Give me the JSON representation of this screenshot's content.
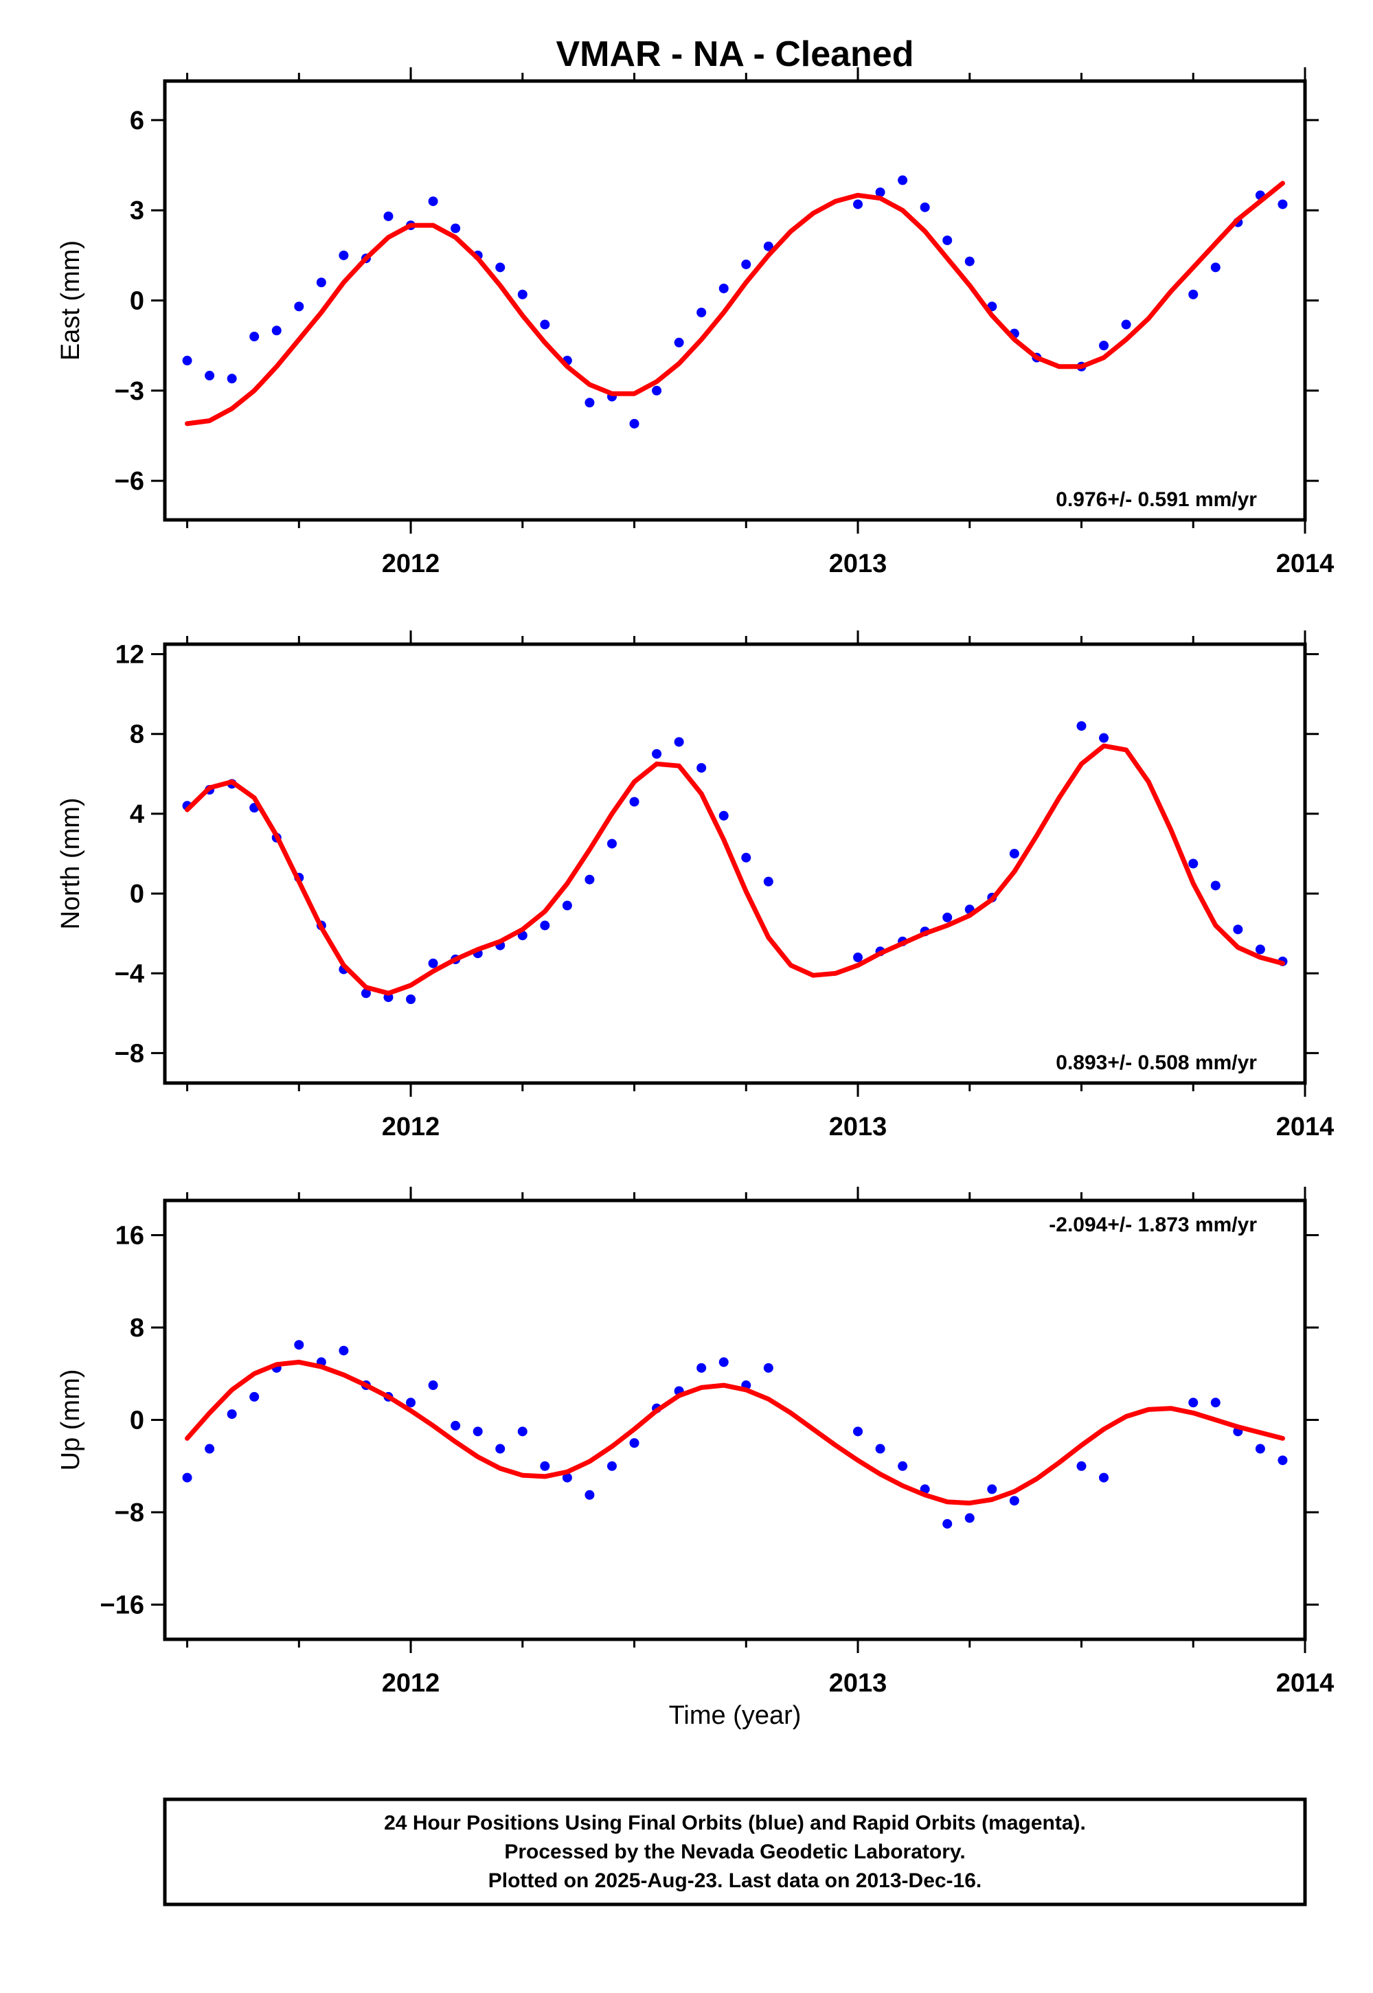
{
  "title": "VMAR  - NA - Cleaned",
  "x_axis_label": "Time (year)",
  "footer": {
    "line1": "24 Hour Positions Using Final Orbits (blue) and Rapid Orbits (magenta).",
    "line2": "Processed by the Nevada Geodetic Laboratory.",
    "line3": "Plotted on 2025-Aug-23. Last data on 2013-Dec-16."
  },
  "colors": {
    "observations": "#0000ff",
    "model": "#ff0000",
    "frame": "#000000"
  },
  "chart_data": [
    {
      "type": "scatter",
      "ylabel": "East (mm)",
      "rate_label": "0.976+/- 0.591 mm/yr",
      "rate_position": "bottom-right",
      "xlim": [
        2011.45,
        2014.0
      ],
      "ylim": [
        -7.3,
        7.3
      ],
      "yticks": [
        -6,
        -3,
        0,
        3,
        6
      ],
      "xticks": [
        2012,
        2013,
        2014
      ],
      "grid": false,
      "series": [
        {
          "kind": "points",
          "x": [
            2011.5,
            2011.55,
            2011.6,
            2011.65,
            2011.7,
            2011.75,
            2011.8,
            2011.85,
            2011.9,
            2011.95,
            2012.0,
            2012.05,
            2012.1,
            2012.15,
            2012.2,
            2012.25,
            2012.3,
            2012.35,
            2012.4,
            2012.45,
            2012.5,
            2012.55,
            2012.6,
            2012.65,
            2012.7,
            2012.75,
            2012.8,
            2013.0,
            2013.05,
            2013.1,
            2013.15,
            2013.2,
            2013.25,
            2013.3,
            2013.35,
            2013.4,
            2013.5,
            2013.55,
            2013.6,
            2013.75,
            2013.8,
            2013.85,
            2013.9,
            2013.95
          ],
          "y": [
            -2.0,
            -2.5,
            -2.6,
            -1.2,
            -1.0,
            -0.2,
            0.6,
            1.5,
            1.4,
            2.8,
            2.5,
            3.3,
            2.4,
            1.5,
            1.1,
            0.2,
            -0.8,
            -2.0,
            -3.4,
            -3.2,
            -4.1,
            -3.0,
            -1.4,
            -0.4,
            0.4,
            1.2,
            1.8,
            3.2,
            3.6,
            4.0,
            3.1,
            2.0,
            1.3,
            -0.2,
            -1.1,
            -1.9,
            -2.2,
            -1.5,
            -0.8,
            0.2,
            1.1,
            2.6,
            3.5,
            3.2
          ]
        },
        {
          "kind": "model",
          "x": [
            2011.5,
            2011.55,
            2011.6,
            2011.65,
            2011.7,
            2011.75,
            2011.8,
            2011.85,
            2011.9,
            2011.95,
            2012.0,
            2012.05,
            2012.1,
            2012.15,
            2012.2,
            2012.25,
            2012.3,
            2012.35,
            2012.4,
            2012.45,
            2012.5,
            2012.55,
            2012.6,
            2012.65,
            2012.7,
            2012.75,
            2012.8,
            2012.85,
            2012.9,
            2012.95,
            2013.0,
            2013.05,
            2013.1,
            2013.15,
            2013.2,
            2013.25,
            2013.3,
            2013.35,
            2013.4,
            2013.45,
            2013.5,
            2013.55,
            2013.6,
            2013.65,
            2013.7,
            2013.75,
            2013.8,
            2013.85,
            2013.9,
            2013.95
          ],
          "y": [
            -4.1,
            -4.0,
            -3.6,
            -3.0,
            -2.2,
            -1.3,
            -0.4,
            0.6,
            1.4,
            2.1,
            2.5,
            2.5,
            2.1,
            1.4,
            0.5,
            -0.5,
            -1.4,
            -2.2,
            -2.8,
            -3.1,
            -3.1,
            -2.7,
            -2.1,
            -1.3,
            -0.4,
            0.6,
            1.5,
            2.3,
            2.9,
            3.3,
            3.5,
            3.4,
            3.0,
            2.3,
            1.4,
            0.5,
            -0.5,
            -1.3,
            -1.9,
            -2.2,
            -2.2,
            -1.9,
            -1.3,
            -0.6,
            0.3,
            1.1,
            1.9,
            2.7,
            3.3,
            3.9
          ]
        }
      ]
    },
    {
      "type": "scatter",
      "ylabel": "North (mm)",
      "rate_label": "0.893+/- 0.508 mm/yr",
      "rate_position": "bottom-right",
      "xlim": [
        2011.45,
        2014.0
      ],
      "ylim": [
        -9.5,
        12.5
      ],
      "yticks": [
        -8,
        -4,
        0,
        4,
        8,
        12
      ],
      "xticks": [
        2012,
        2013,
        2014
      ],
      "grid": false,
      "series": [
        {
          "kind": "points",
          "x": [
            2011.5,
            2011.55,
            2011.6,
            2011.65,
            2011.7,
            2011.75,
            2011.8,
            2011.85,
            2011.9,
            2011.95,
            2012.0,
            2012.05,
            2012.1,
            2012.15,
            2012.2,
            2012.25,
            2012.3,
            2012.35,
            2012.4,
            2012.45,
            2012.5,
            2012.55,
            2012.6,
            2012.65,
            2012.7,
            2012.75,
            2012.8,
            2013.0,
            2013.05,
            2013.1,
            2013.15,
            2013.2,
            2013.25,
            2013.3,
            2013.35,
            2013.5,
            2013.55,
            2013.75,
            2013.8,
            2013.85,
            2013.9,
            2013.95
          ],
          "y": [
            4.4,
            5.2,
            5.5,
            4.3,
            2.8,
            0.8,
            -1.6,
            -3.8,
            -5.0,
            -5.2,
            -5.3,
            -3.5,
            -3.3,
            -3.0,
            -2.6,
            -2.1,
            -1.6,
            -0.6,
            0.7,
            2.5,
            4.6,
            7.0,
            7.6,
            6.3,
            3.9,
            1.8,
            0.6,
            -3.2,
            -2.9,
            -2.4,
            -1.9,
            -1.2,
            -0.8,
            -0.2,
            2.0,
            8.4,
            7.8,
            1.5,
            0.4,
            -1.8,
            -2.8,
            -3.4
          ]
        },
        {
          "kind": "model",
          "x": [
            2011.5,
            2011.55,
            2011.6,
            2011.65,
            2011.7,
            2011.75,
            2011.8,
            2011.85,
            2011.9,
            2011.95,
            2012.0,
            2012.05,
            2012.1,
            2012.15,
            2012.2,
            2012.25,
            2012.3,
            2012.35,
            2012.4,
            2012.45,
            2012.5,
            2012.55,
            2012.6,
            2012.65,
            2012.7,
            2012.75,
            2012.8,
            2012.85,
            2012.9,
            2012.95,
            2013.0,
            2013.05,
            2013.1,
            2013.15,
            2013.2,
            2013.25,
            2013.3,
            2013.35,
            2013.4,
            2013.45,
            2013.5,
            2013.55,
            2013.6,
            2013.65,
            2013.7,
            2013.75,
            2013.8,
            2013.85,
            2013.9,
            2013.95
          ],
          "y": [
            4.2,
            5.3,
            5.6,
            4.8,
            2.9,
            0.6,
            -1.7,
            -3.6,
            -4.7,
            -5.0,
            -4.6,
            -3.9,
            -3.3,
            -2.8,
            -2.4,
            -1.8,
            -0.9,
            0.5,
            2.2,
            4.0,
            5.6,
            6.5,
            6.4,
            5.0,
            2.7,
            0.1,
            -2.2,
            -3.6,
            -4.1,
            -4.0,
            -3.6,
            -3.0,
            -2.5,
            -2.0,
            -1.6,
            -1.1,
            -0.3,
            1.1,
            2.9,
            4.8,
            6.5,
            7.4,
            7.2,
            5.6,
            3.2,
            0.5,
            -1.6,
            -2.7,
            -3.2,
            -3.5
          ]
        }
      ]
    },
    {
      "type": "scatter",
      "ylabel": "Up (mm)",
      "rate_label": "-2.094+/- 1.873 mm/yr",
      "rate_position": "top-right",
      "xlim": [
        2011.45,
        2014.0
      ],
      "ylim": [
        -19,
        19
      ],
      "yticks": [
        -16,
        -8,
        0,
        8,
        16
      ],
      "xticks": [
        2012,
        2013,
        2014
      ],
      "grid": false,
      "series": [
        {
          "kind": "points",
          "x": [
            2011.5,
            2011.55,
            2011.6,
            2011.65,
            2011.7,
            2011.75,
            2011.8,
            2011.85,
            2011.9,
            2011.95,
            2012.0,
            2012.05,
            2012.1,
            2012.15,
            2012.2,
            2012.25,
            2012.3,
            2012.35,
            2012.4,
            2012.45,
            2012.5,
            2012.55,
            2012.6,
            2012.65,
            2012.7,
            2012.75,
            2012.8,
            2013.0,
            2013.05,
            2013.1,
            2013.15,
            2013.2,
            2013.25,
            2013.3,
            2013.35,
            2013.5,
            2013.55,
            2013.75,
            2013.8,
            2013.85,
            2013.9,
            2013.95
          ],
          "y": [
            -5.0,
            -2.5,
            0.5,
            2.0,
            4.5,
            6.5,
            5.0,
            6.0,
            3.0,
            2.0,
            1.5,
            3.0,
            -0.5,
            -1.0,
            -2.5,
            -1.0,
            -4.0,
            -5.0,
            -6.5,
            -4.0,
            -2.0,
            1.0,
            2.5,
            4.5,
            5.0,
            3.0,
            4.5,
            -1.0,
            -2.5,
            -4.0,
            -6.0,
            -9.0,
            -8.5,
            -6.0,
            -7.0,
            -4.0,
            -5.0,
            1.5,
            1.5,
            -1.0,
            -2.5,
            -3.5
          ]
        },
        {
          "kind": "model",
          "x": [
            2011.5,
            2011.55,
            2011.6,
            2011.65,
            2011.7,
            2011.75,
            2011.8,
            2011.85,
            2011.9,
            2011.95,
            2012.0,
            2012.05,
            2012.1,
            2012.15,
            2012.2,
            2012.25,
            2012.3,
            2012.35,
            2012.4,
            2012.45,
            2012.5,
            2012.55,
            2012.6,
            2012.65,
            2012.7,
            2012.75,
            2012.8,
            2012.85,
            2012.9,
            2012.95,
            2013.0,
            2013.05,
            2013.1,
            2013.15,
            2013.2,
            2013.25,
            2013.3,
            2013.35,
            2013.4,
            2013.45,
            2013.5,
            2013.55,
            2013.6,
            2013.65,
            2013.7,
            2013.75,
            2013.8,
            2013.85,
            2013.9,
            2013.95
          ],
          "y": [
            -1.6,
            0.6,
            2.6,
            4.0,
            4.8,
            5.0,
            4.6,
            3.9,
            3.0,
            2.0,
            0.8,
            -0.5,
            -1.9,
            -3.2,
            -4.2,
            -4.8,
            -4.9,
            -4.5,
            -3.6,
            -2.3,
            -0.8,
            0.8,
            2.1,
            2.8,
            3.0,
            2.6,
            1.8,
            0.6,
            -0.8,
            -2.2,
            -3.5,
            -4.7,
            -5.7,
            -6.5,
            -7.1,
            -7.2,
            -6.9,
            -6.2,
            -5.1,
            -3.7,
            -2.2,
            -0.8,
            0.3,
            0.9,
            1.0,
            0.6,
            0.0,
            -0.6,
            -1.1,
            -1.6
          ]
        }
      ]
    }
  ]
}
